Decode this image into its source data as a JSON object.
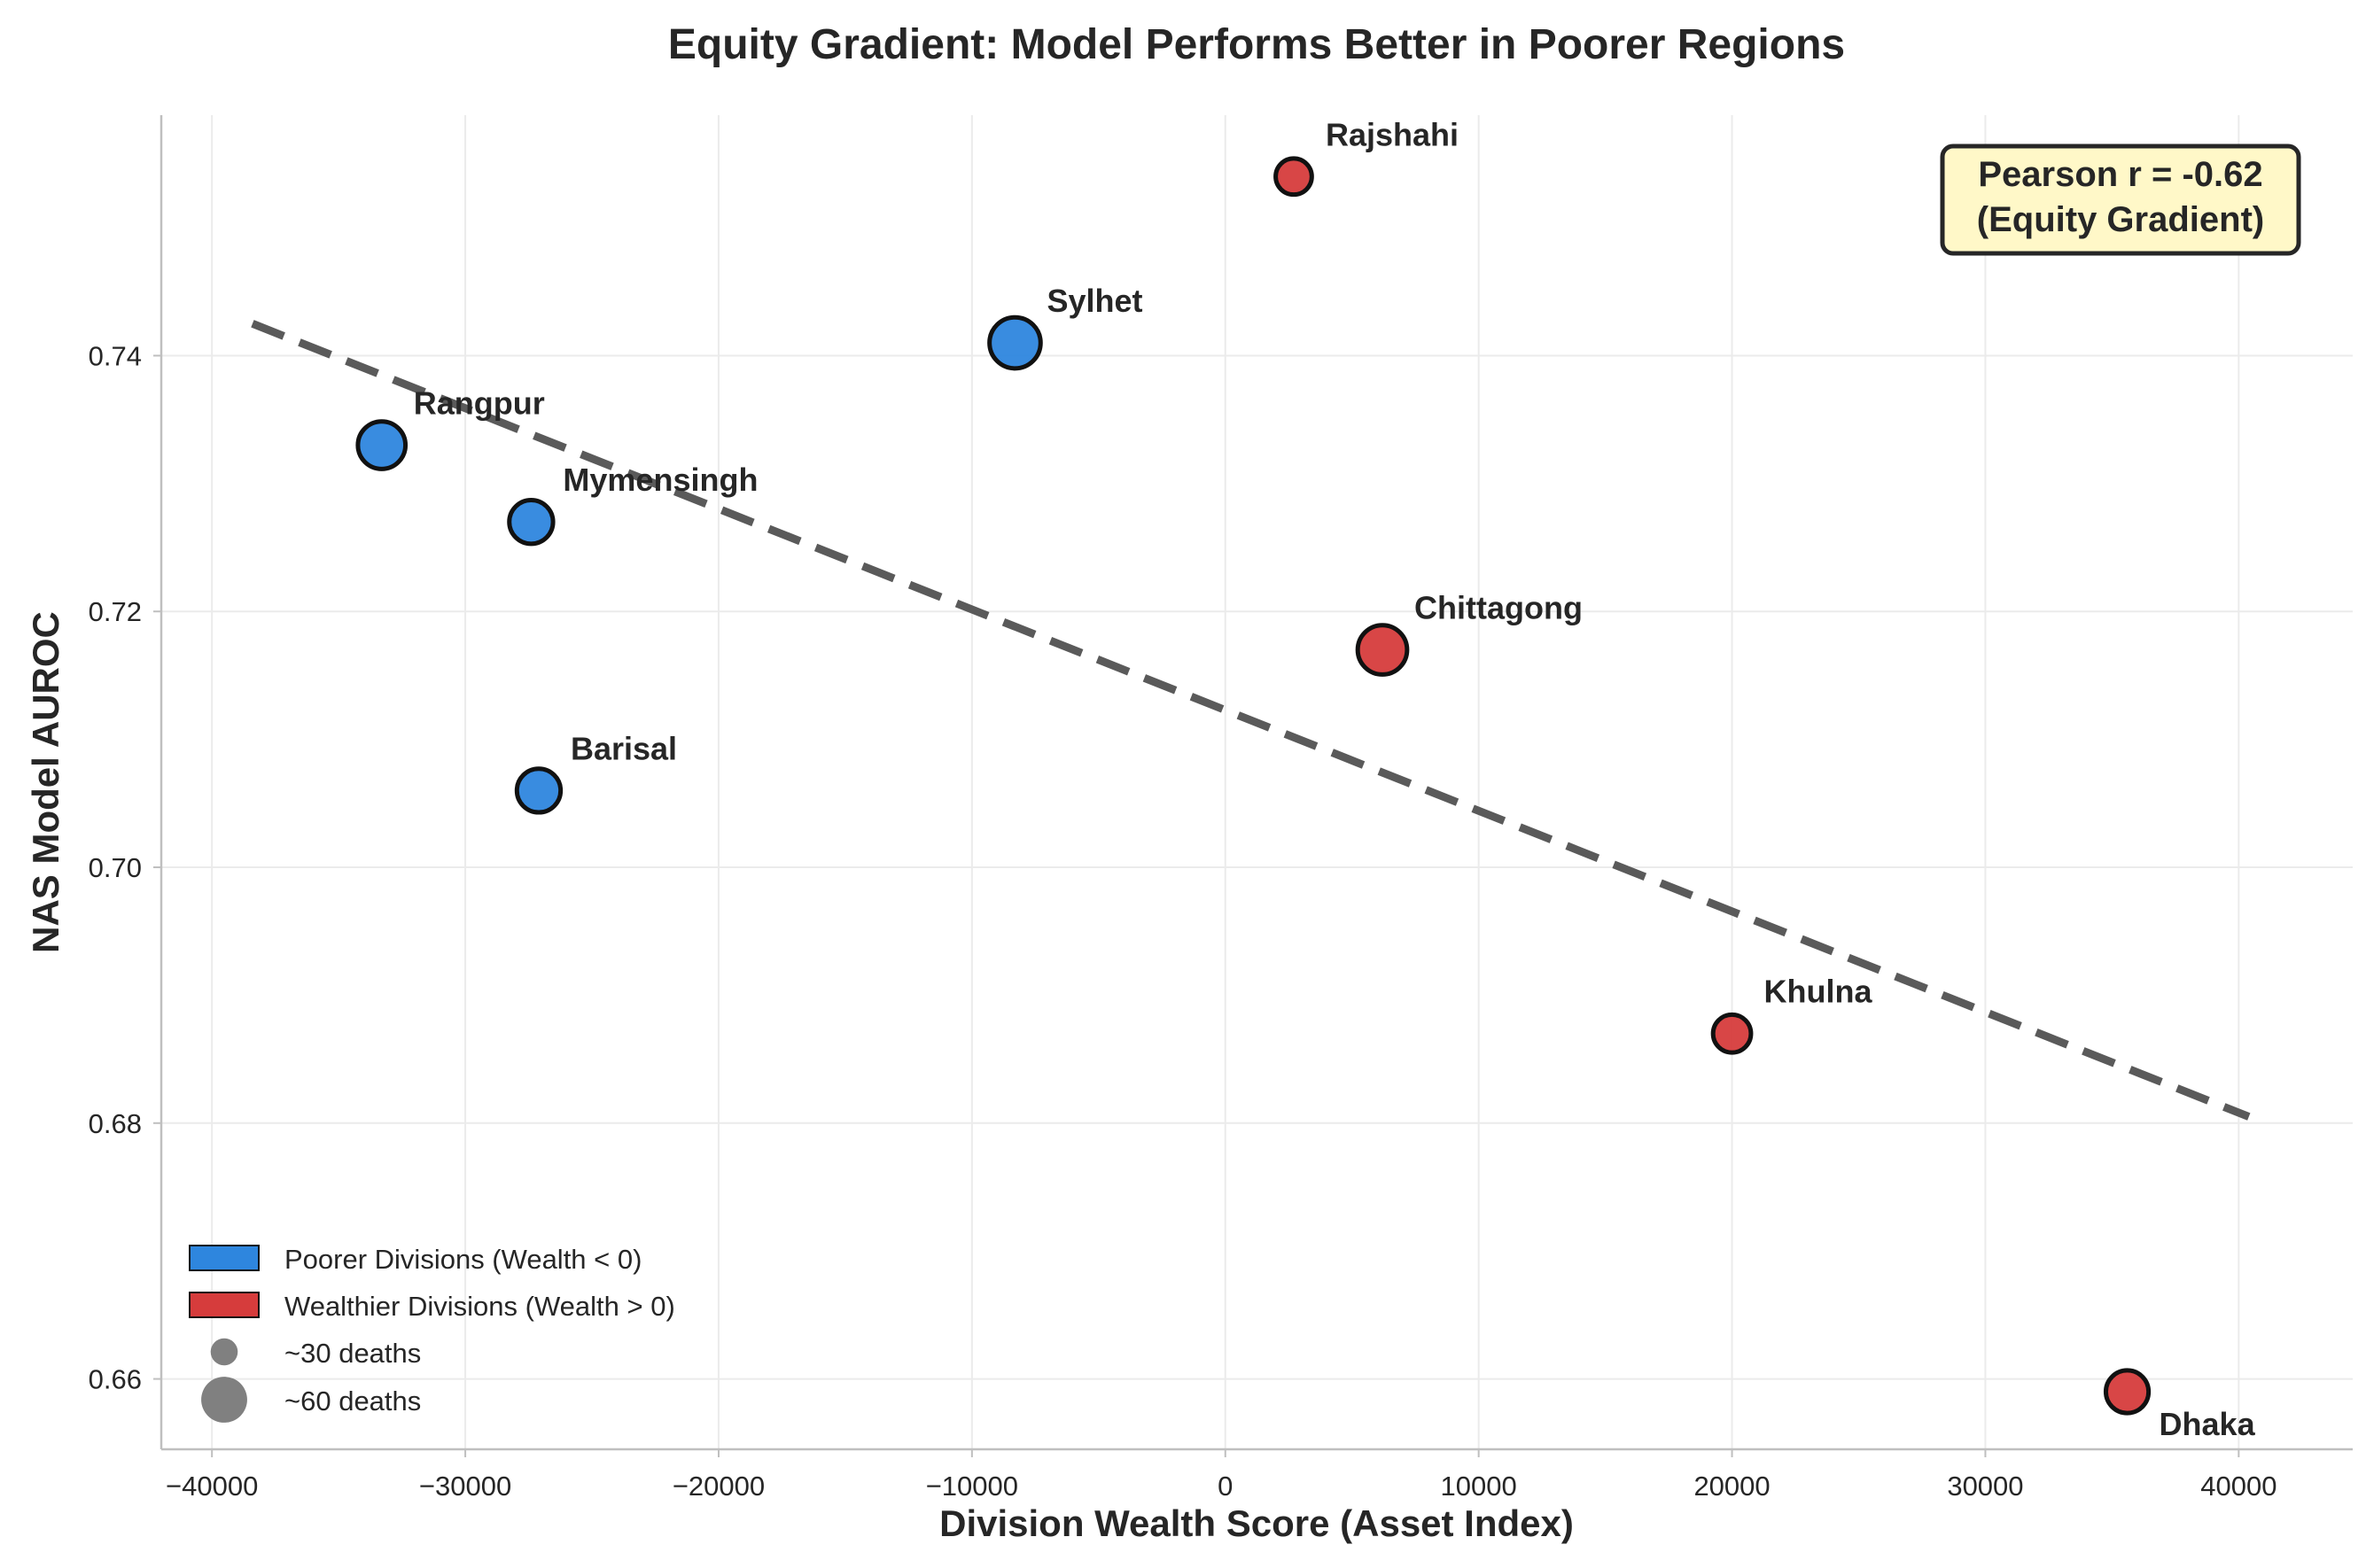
{
  "chart_data": {
    "type": "scatter",
    "title": "Equity Gradient: Model Performs Better in Poorer Regions",
    "xlabel": "Division Wealth Score (Asset Index)",
    "ylabel": "NAS Model AUROC",
    "xlim": [
      -42000,
      44500
    ],
    "ylim": [
      0.6545,
      0.7588
    ],
    "xticks": [
      -40000,
      -30000,
      -20000,
      -10000,
      0,
      10000,
      20000,
      30000,
      40000
    ],
    "yticks": [
      0.66,
      0.68,
      0.7,
      0.72,
      0.74
    ],
    "ytick_labels": [
      "0.66",
      "0.68",
      "0.70",
      "0.72",
      "0.74"
    ],
    "grid": true,
    "colors": {
      "poorer": "#2e86de",
      "wealthier": "#d63c3c",
      "trend": "#5a5a5a",
      "annotation_bg": "#fff8c8",
      "size_marker": "#808080"
    },
    "points": [
      {
        "name": "Rangpur",
        "x": -33300,
        "y": 0.733,
        "group": "poorer",
        "deaths": 52,
        "label_pos": "upper-right"
      },
      {
        "name": "Mymensingh",
        "x": -27400,
        "y": 0.727,
        "group": "poorer",
        "deaths": 44,
        "label_pos": "upper-right"
      },
      {
        "name": "Barisal",
        "x": -27100,
        "y": 0.706,
        "group": "poorer",
        "deaths": 44,
        "label_pos": "upper-right"
      },
      {
        "name": "Sylhet",
        "x": -8300,
        "y": 0.741,
        "group": "poorer",
        "deaths": 60,
        "label_pos": "upper-right"
      },
      {
        "name": "Rajshahi",
        "x": 2700,
        "y": 0.754,
        "group": "wealthier",
        "deaths": 30,
        "label_pos": "upper-right"
      },
      {
        "name": "Chittagong",
        "x": 6200,
        "y": 0.717,
        "group": "wealthier",
        "deaths": 56,
        "label_pos": "upper-right"
      },
      {
        "name": "Khulna",
        "x": 20000,
        "y": 0.687,
        "group": "wealthier",
        "deaths": 33,
        "label_pos": "upper-right"
      },
      {
        "name": "Dhaka",
        "x": 35600,
        "y": 0.659,
        "group": "wealthier",
        "deaths": 42,
        "label_pos": "lower-right"
      }
    ],
    "trend_line": {
      "x_start": -38400,
      "y_start": 0.7425,
      "x_end": 40400,
      "y_end": 0.6805,
      "style": "dashed"
    },
    "annotation": {
      "line1": "Pearson r = -0.62",
      "line2": "(Equity Gradient)",
      "position": "top-right"
    },
    "legend": {
      "position": "lower-left",
      "entries": [
        {
          "label": "Poorer Divisions (Wealth < 0)",
          "kind": "patch",
          "group": "poorer"
        },
        {
          "label": "Wealthier Divisions (Wealth > 0)",
          "kind": "patch",
          "group": "wealthier"
        },
        {
          "label": "~30 deaths",
          "kind": "size",
          "deaths": 30
        },
        {
          "label": "~60 deaths",
          "kind": "size",
          "deaths": 60
        }
      ]
    }
  }
}
